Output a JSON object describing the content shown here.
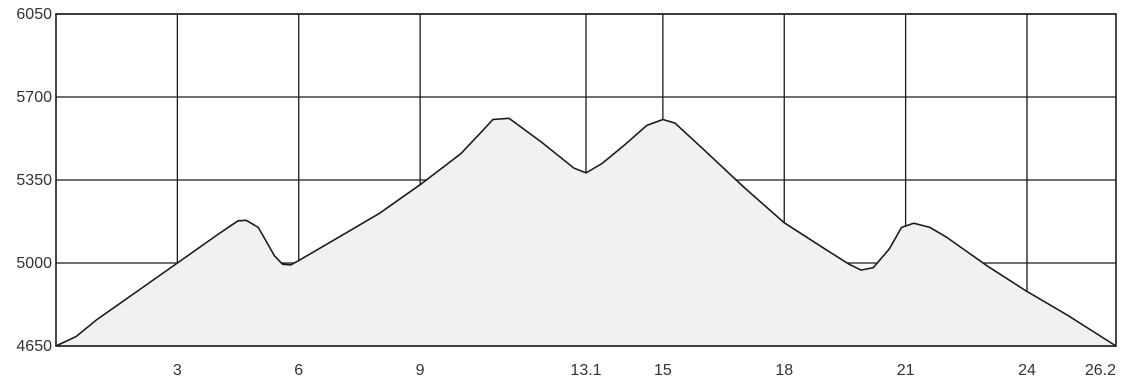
{
  "chart_data": {
    "type": "area",
    "title": "",
    "xlabel": "",
    "ylabel": "",
    "xlim": [
      0,
      26.2
    ],
    "ylim": [
      4650,
      6050
    ],
    "x_ticks": [
      3,
      6,
      9,
      13.1,
      15,
      18,
      21,
      24,
      26.2
    ],
    "x_tick_labels": [
      "3",
      "6",
      "9",
      "13.1",
      "15",
      "18",
      "21",
      "24",
      "26.2"
    ],
    "y_ticks": [
      4650,
      5000,
      5350,
      5700,
      6050
    ],
    "y_tick_labels": [
      "4650",
      "5000",
      "5350",
      "5700",
      "6050"
    ],
    "grid": true,
    "series": [
      {
        "x": [
          0,
          0.5,
          1,
          2,
          3,
          4,
          4.3,
          4.5,
          4.7,
          5,
          5.4,
          5.6,
          5.8,
          6,
          7,
          8,
          9,
          10,
          10.5,
          10.8,
          11.2,
          12,
          12.8,
          13.1,
          13.5,
          14,
          14.6,
          15,
          15.3,
          16,
          17,
          18,
          19,
          19.6,
          19.9,
          20.2,
          20.6,
          20.9,
          21.2,
          21.6,
          22,
          22.5,
          23,
          24,
          25,
          26.2
        ],
        "y": [
          4650,
          4690,
          4760,
          4880,
          5000,
          5120,
          5155,
          5178,
          5180,
          5150,
          5030,
          4995,
          4992,
          5010,
          5110,
          5210,
          5330,
          5460,
          5550,
          5605,
          5610,
          5510,
          5400,
          5380,
          5420,
          5490,
          5580,
          5605,
          5590,
          5480,
          5320,
          5170,
          5060,
          4995,
          4970,
          4980,
          5060,
          5150,
          5168,
          5150,
          5110,
          5050,
          4990,
          4880,
          4780,
          4650
        ]
      }
    ]
  }
}
